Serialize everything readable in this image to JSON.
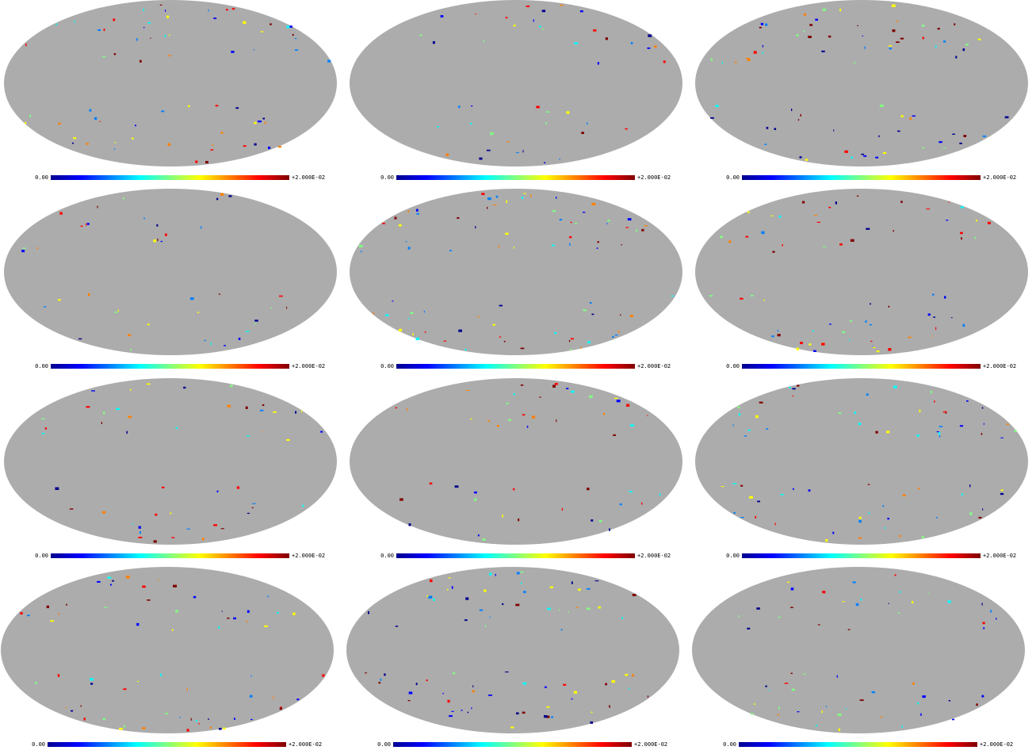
{
  "panels": [
    {
      "min_label": "0.00",
      "max_label": "+2.000E-02"
    },
    {
      "min_label": "0.00",
      "max_label": "+2.000E-02"
    },
    {
      "min_label": "0.00",
      "max_label": "+2.000E-02"
    },
    {
      "min_label": "0.00",
      "max_label": "+2.000E-02"
    },
    {
      "min_label": "0.00",
      "max_label": "+2.000E-02"
    },
    {
      "min_label": "0.00",
      "max_label": "+2.000E-02"
    },
    {
      "min_label": "0.00",
      "max_label": "+2.000E-02"
    },
    {
      "min_label": "0.00",
      "max_label": "+2.000E-02"
    },
    {
      "min_label": "0.00",
      "max_label": "+2.000E-02"
    },
    {
      "min_label": "0.00",
      "max_label": "+2.000E-02"
    },
    {
      "min_label": "0.00",
      "max_label": "+2.000E-02"
    },
    {
      "min_label": "0.00",
      "max_label": "+2.000E-02"
    }
  ]
}
